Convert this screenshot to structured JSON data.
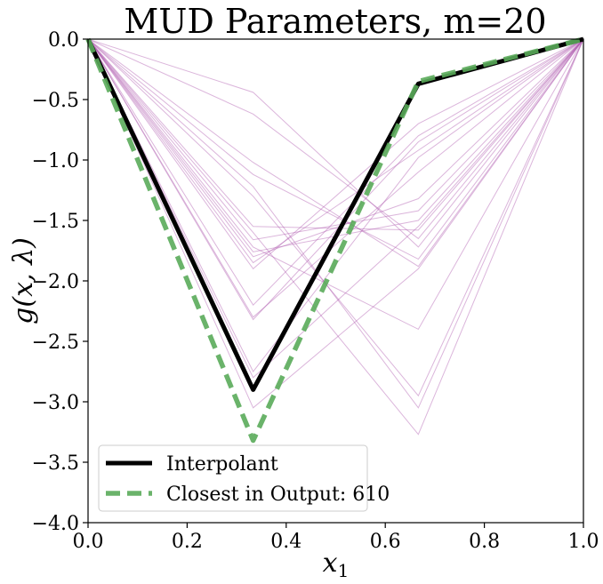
{
  "chart_data": {
    "type": "line",
    "title": "MUD Parameters, m=20",
    "xlabel": "x_1",
    "ylabel": "g(x, λ)",
    "xlim": [
      0.0,
      1.0
    ],
    "ylim": [
      -4.0,
      0.0
    ],
    "x_ticks": [
      "0.0",
      "0.2",
      "0.4",
      "0.6",
      "0.8",
      "1.0"
    ],
    "y_ticks": [
      "0.0",
      "−0.5",
      "−1.0",
      "−1.5",
      "−2.0",
      "−2.5",
      "−3.0",
      "−3.5",
      "−4.0"
    ],
    "x": [
      0.0,
      0.3333,
      0.6667,
      1.0
    ],
    "series": [
      {
        "name": "Interpolant",
        "values": [
          0.0,
          -2.9,
          -0.37,
          0.0
        ],
        "color": "#000000",
        "style": "solid"
      },
      {
        "name": "Closest in Output: 610",
        "values": [
          0.0,
          -3.32,
          -0.35,
          0.0
        ],
        "color": "#5aab5a",
        "style": "dashed"
      }
    ],
    "background_series": {
      "color": "#b05cb0",
      "values": [
        [
          0.0,
          -0.44,
          -1.72,
          0.0
        ],
        [
          0.0,
          -0.62,
          -1.65,
          0.0
        ],
        [
          0.0,
          -1.02,
          -1.88,
          0.0
        ],
        [
          0.0,
          -1.12,
          -1.82,
          0.0
        ],
        [
          0.0,
          -1.55,
          -1.58,
          0.0
        ],
        [
          0.0,
          -1.66,
          -1.42,
          0.0
        ],
        [
          0.0,
          -1.76,
          -1.5,
          0.0
        ],
        [
          0.0,
          -1.8,
          -1.32,
          0.0
        ],
        [
          0.0,
          -1.85,
          -0.92,
          0.0
        ],
        [
          0.0,
          -1.9,
          -0.7,
          0.0
        ],
        [
          0.0,
          -2.2,
          -0.8,
          0.0
        ],
        [
          0.0,
          -2.3,
          -1.1,
          0.0
        ],
        [
          0.0,
          -2.32,
          -0.85,
          0.0
        ],
        [
          0.0,
          -2.75,
          -0.98,
          0.0
        ],
        [
          0.0,
          -2.8,
          -1.55,
          0.0
        ],
        [
          0.0,
          -3.05,
          -1.9,
          0.0
        ],
        [
          0.0,
          -1.72,
          -2.4,
          0.0
        ],
        [
          0.0,
          -1.3,
          -2.95,
          0.0
        ],
        [
          0.0,
          -1.22,
          -3.05,
          0.0
        ],
        [
          0.0,
          -1.6,
          -3.27,
          0.0
        ]
      ]
    },
    "legend": {
      "placement": "lower-left"
    },
    "grid": false
  }
}
